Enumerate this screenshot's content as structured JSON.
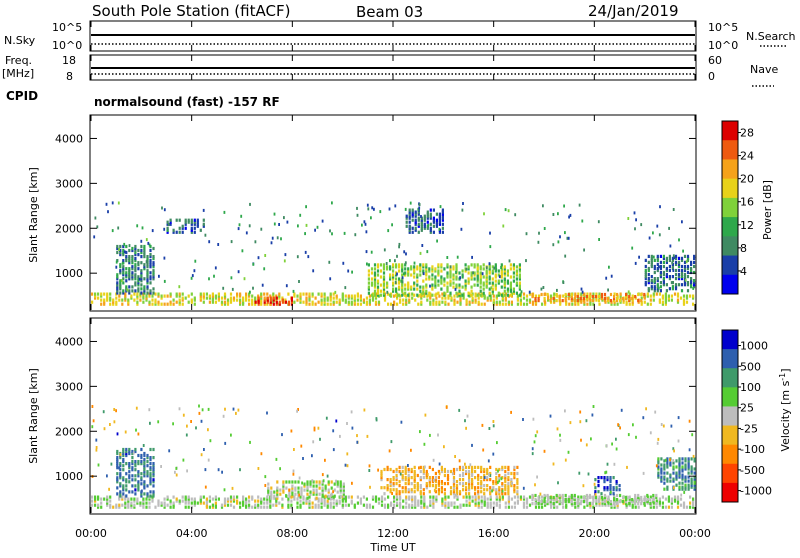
{
  "header": {
    "station": "South Pole Station (fitACF)",
    "beam": "Beam 03",
    "date": "24/Jan/2019"
  },
  "strips": {
    "nsky_label": "N.Sky",
    "nsky_ticks": [
      "10^5",
      "10^0"
    ],
    "nsearch_label": "N.Search",
    "nsearch_ticks": [
      "10^5",
      "10^0"
    ],
    "freq_label_1": "Freq.",
    "freq_label_2": "[MHz]",
    "freq_ticks": [
      "18",
      "8"
    ],
    "nave_label": "Nave",
    "nave_ticks": [
      "60",
      "0"
    ],
    "cpid_label": "CPID",
    "cpid_text": "normalsound (fast) -157 RF"
  },
  "colors": {
    "power_scale": [
      "#0000ee",
      "#1a3fa8",
      "#3f8a62",
      "#2ea84b",
      "#7fd13a",
      "#e8d21a",
      "#f5a21a",
      "#ee5a10",
      "#dd0000"
    ],
    "velocity_scale": [
      "#0000cc",
      "#2e5fae",
      "#3f9a6a",
      "#55cc33",
      "#bdbdbd",
      "#f0b820",
      "#ff8800",
      "#ff4400",
      "#ee0000"
    ]
  },
  "chart_data": [
    {
      "type": "heatmap",
      "title": "",
      "xlabel": "",
      "ylabel": "Slant Range [km]",
      "xlim": [
        0,
        24
      ],
      "ylim": [
        180,
        4500
      ],
      "x_ticks": [
        0,
        4,
        8,
        12,
        16,
        20,
        24
      ],
      "y_ticks": [
        1000,
        2000,
        3000,
        4000
      ],
      "y_tick_labels": [
        "1000",
        "2000",
        "3000",
        "4000"
      ],
      "colorbar_label": "Power [dB]",
      "colorbar_ticks": [
        "4",
        "8",
        "12",
        "16",
        "20",
        "24",
        "28"
      ],
      "colorbar_range": [
        0,
        30
      ],
      "regions": [
        {
          "x0": 0.0,
          "x1": 24.0,
          "r0": 300,
          "r1": 550,
          "value": 18
        },
        {
          "x0": 6.5,
          "x1": 8.0,
          "r0": 300,
          "r1": 450,
          "value": 26
        },
        {
          "x0": 11.0,
          "x1": 17.0,
          "r0": 500,
          "r1": 1200,
          "value": 15
        },
        {
          "x0": 17.5,
          "x1": 22.0,
          "r0": 380,
          "r1": 520,
          "value": 22
        },
        {
          "x0": 1.0,
          "x1": 2.5,
          "r0": 550,
          "r1": 1600,
          "value": 8
        },
        {
          "x0": 3.0,
          "x1": 4.5,
          "r0": 1900,
          "r1": 2200,
          "value": 7
        },
        {
          "x0": 12.5,
          "x1": 14.0,
          "r0": 1900,
          "r1": 2400,
          "value": 6
        },
        {
          "x0": 22.0,
          "x1": 24.0,
          "r0": 600,
          "r1": 1400,
          "value": 7
        }
      ]
    },
    {
      "type": "heatmap",
      "title": "",
      "xlabel": "Time UT",
      "ylabel": "Slant Range [km]",
      "xlim": [
        0,
        24
      ],
      "ylim": [
        180,
        4500
      ],
      "x_ticks": [
        0,
        4,
        8,
        12,
        16,
        20,
        24
      ],
      "x_tick_labels": [
        "00:00",
        "04:00",
        "08:00",
        "12:00",
        "16:00",
        "20:00",
        "00:00"
      ],
      "y_ticks": [
        1000,
        2000,
        3000,
        4000
      ],
      "y_tick_labels": [
        "1000",
        "2000",
        "3000",
        "4000"
      ],
      "colorbar_label": "Velocity [m s^-1]",
      "colorbar_ticks": [
        "1000",
        "500",
        "100",
        "25",
        "-25",
        "-100",
        "-500",
        "-1000"
      ],
      "colorbar_range": [
        -1200,
        1200
      ],
      "regions": [
        {
          "x0": 0.0,
          "x1": 24.0,
          "r0": 300,
          "r1": 550,
          "value": 80
        },
        {
          "x0": 11.5,
          "x1": 17.0,
          "r0": 600,
          "r1": 1200,
          "value": -300
        },
        {
          "x0": 17.5,
          "x1": 22.5,
          "r0": 380,
          "r1": 600,
          "value": 120
        },
        {
          "x0": 1.0,
          "x1": 2.5,
          "r0": 550,
          "r1": 1600,
          "value": 700
        },
        {
          "x0": 20.0,
          "x1": 21.0,
          "r0": 600,
          "r1": 1000,
          "value": 800
        },
        {
          "x0": 7.0,
          "x1": 10.0,
          "r0": 500,
          "r1": 900,
          "value": 60
        },
        {
          "x0": 22.5,
          "x1": 24.0,
          "r0": 700,
          "r1": 1400,
          "value": 600
        }
      ]
    }
  ]
}
